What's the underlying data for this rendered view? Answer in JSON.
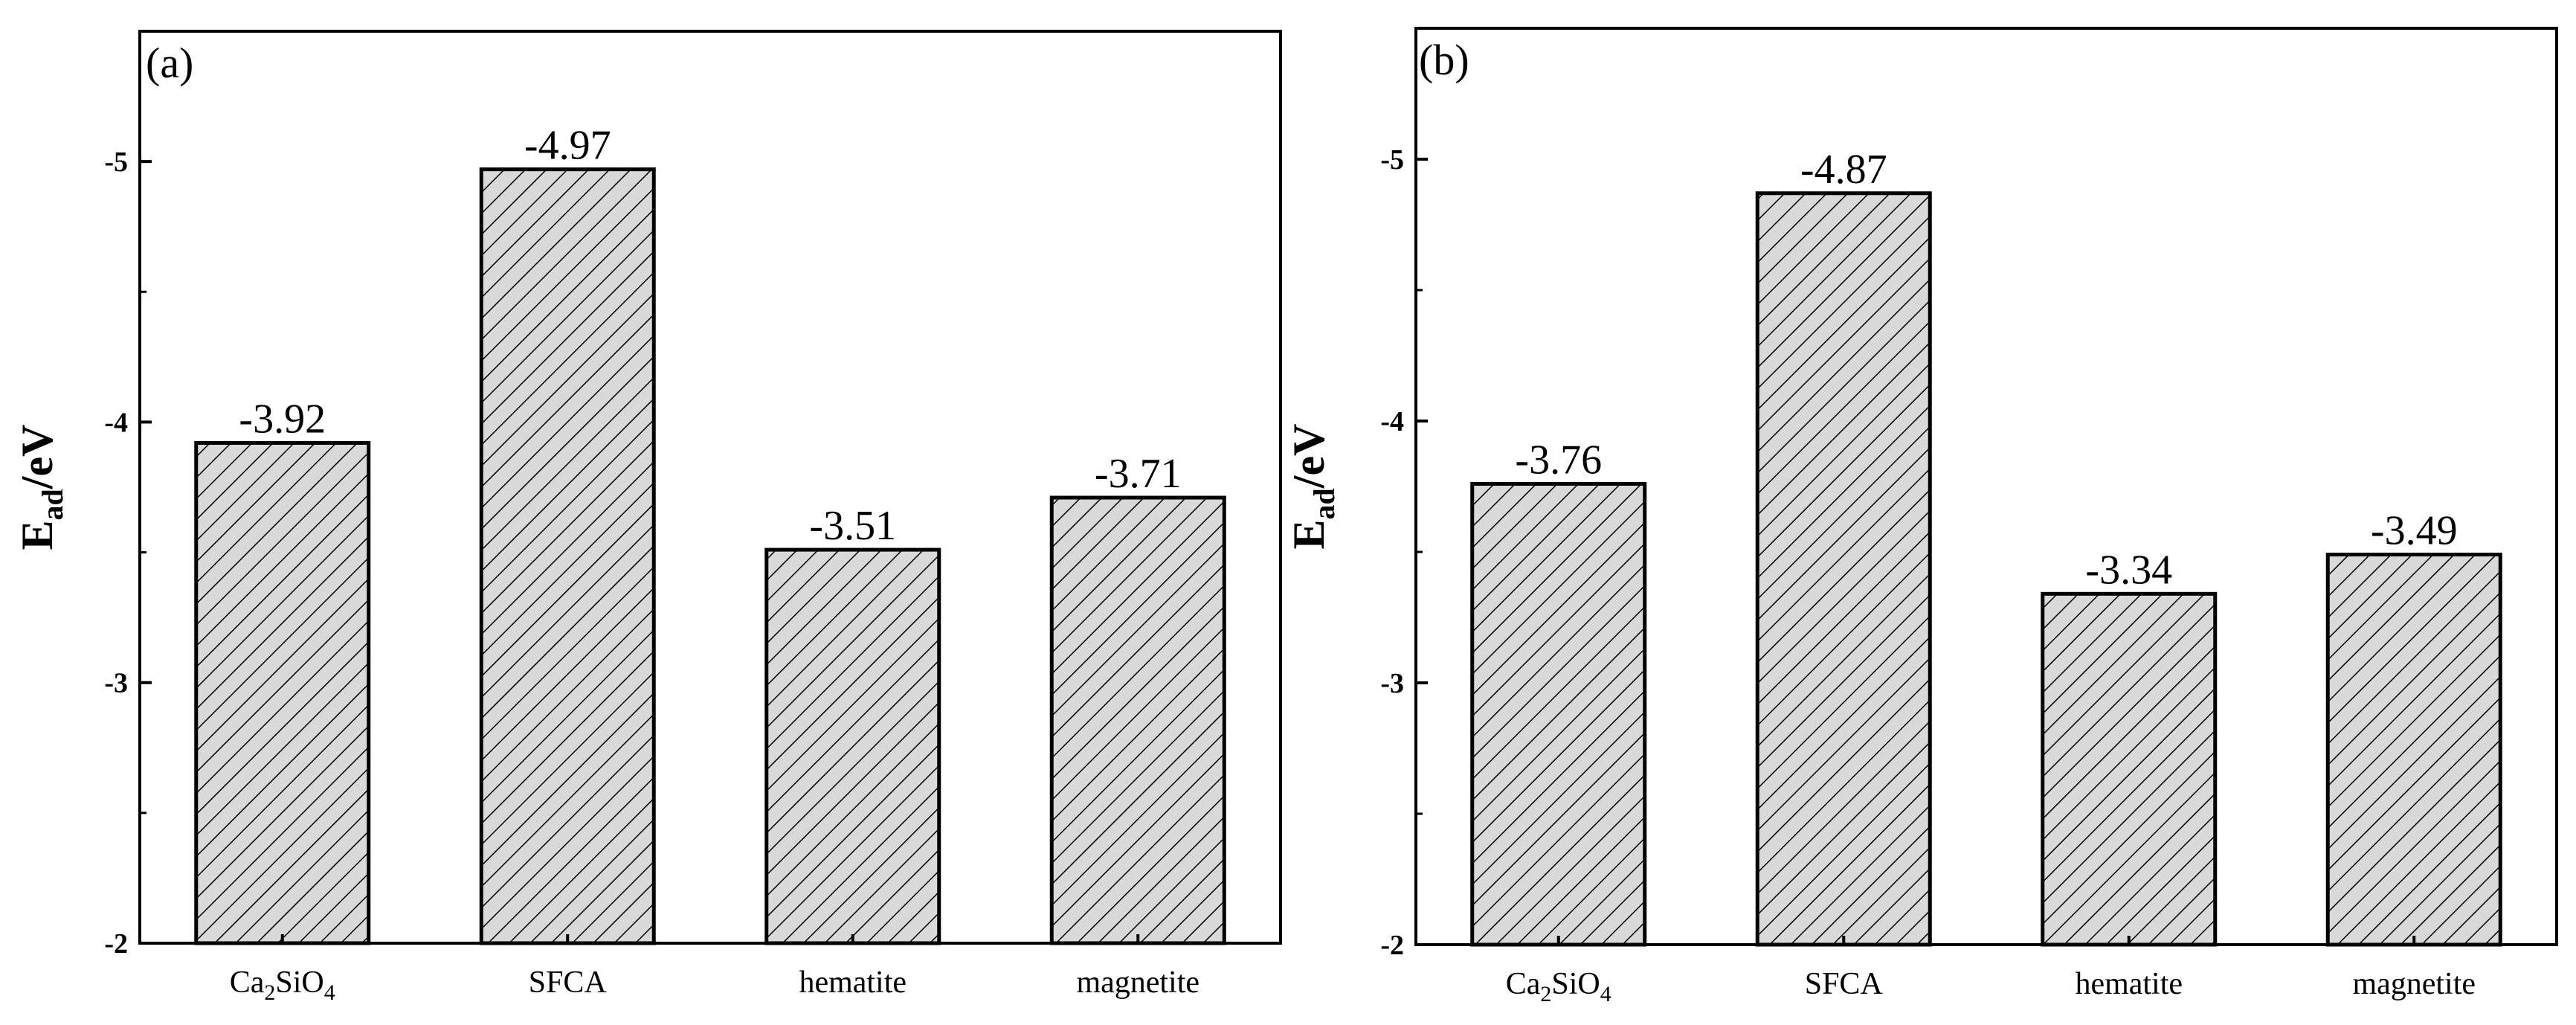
{
  "chart_data": [
    {
      "type": "bar",
      "panel_label": "(a)",
      "categories": [
        [
          {
            "t": "Ca"
          },
          {
            "t": "2",
            "sub": true
          },
          {
            "t": "SiO"
          },
          {
            "t": "4",
            "sub": true
          }
        ],
        [
          {
            "t": "SFCA"
          }
        ],
        [
          {
            "t": "hematite"
          }
        ],
        [
          {
            "t": "magnetite"
          }
        ]
      ],
      "values": [
        -3.92,
        -4.97,
        -3.51,
        -3.71
      ],
      "value_labels": [
        "-3.92",
        "-4.97",
        "-3.51",
        "-3.71"
      ],
      "ylabel": [
        {
          "t": "E"
        },
        {
          "t": "ad",
          "sub": true
        },
        {
          "t": "/eV"
        }
      ],
      "ylim": [
        -2,
        -5.5
      ],
      "yticks": [
        -2,
        -3,
        -4,
        -5
      ],
      "ytick_labels": [
        "-2",
        "-3",
        "-4",
        "-5"
      ],
      "minor_step": 0.5,
      "bar_fill": "#d9d9d9",
      "hatch": "diagonal"
    },
    {
      "type": "bar",
      "panel_label": "(b)",
      "categories": [
        [
          {
            "t": "Ca"
          },
          {
            "t": "2",
            "sub": true
          },
          {
            "t": "SiO"
          },
          {
            "t": "4",
            "sub": true
          }
        ],
        [
          {
            "t": "SFCA"
          }
        ],
        [
          {
            "t": "hematite"
          }
        ],
        [
          {
            "t": "magnetite"
          }
        ]
      ],
      "values": [
        -3.76,
        -4.87,
        -3.34,
        -3.49
      ],
      "value_labels": [
        "-3.76",
        "-4.87",
        "-3.34",
        "-3.49"
      ],
      "ylabel": [
        {
          "t": "E"
        },
        {
          "t": "ad",
          "sub": true
        },
        {
          "t": "/eV"
        }
      ],
      "ylim": [
        -2,
        -5.5
      ],
      "yticks": [
        -2,
        -3,
        -4,
        -5
      ],
      "ytick_labels": [
        "-2",
        "-3",
        "-4",
        "-5"
      ],
      "minor_step": 0.5,
      "bar_fill": "#d9d9d9",
      "hatch": "diagonal"
    }
  ]
}
